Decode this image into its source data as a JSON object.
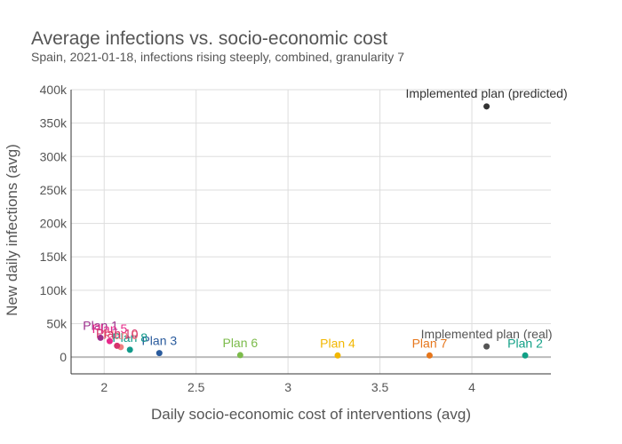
{
  "chart_data": {
    "type": "scatter",
    "title": "Average infections vs. socio-economic cost",
    "subtitle": "Spain, 2021-01-18, infections rising steeply, combined, granularity 7",
    "xlabel": "Daily socio-economic cost of interventions (avg)",
    "ylabel": "New daily infections (avg)",
    "xlim": [
      1.82,
      4.43
    ],
    "ylim": [
      -25000,
      400000
    ],
    "x_ticks": [
      2,
      2.5,
      3,
      3.5,
      4
    ],
    "x_tick_labels": [
      "2",
      "2.5",
      "3",
      "3.5",
      "4"
    ],
    "y_ticks": [
      0,
      50000,
      100000,
      150000,
      200000,
      250000,
      300000,
      350000,
      400000
    ],
    "y_tick_labels": [
      "0",
      "50k",
      "100k",
      "150k",
      "200k",
      "250k",
      "300k",
      "350k",
      "400k"
    ],
    "grid": true,
    "legend": "none",
    "points": [
      {
        "label": "Implemented plan (predicted)",
        "x": 4.08,
        "y": 375000,
        "color": "#333333"
      },
      {
        "label": "Implemented plan (real)",
        "x": 4.08,
        "y": 16000,
        "color": "#555555"
      },
      {
        "label": "Plan 1",
        "x": 1.98,
        "y": 29000,
        "color": "#9c2f8c"
      },
      {
        "label": "Plan 2",
        "x": 4.29,
        "y": 2500,
        "color": "#11a086"
      },
      {
        "label": "Plan 3",
        "x": 2.3,
        "y": 6000,
        "color": "#2a5b9d"
      },
      {
        "label": "Plan 4",
        "x": 3.27,
        "y": 2500,
        "color": "#f2b701"
      },
      {
        "label": "Plan 5",
        "x": 2.03,
        "y": 24000,
        "color": "#e7298a"
      },
      {
        "label": "Plan 6",
        "x": 2.74,
        "y": 3000,
        "color": "#7cbb4b"
      },
      {
        "label": "Plan 7",
        "x": 3.77,
        "y": 2500,
        "color": "#e6761b"
      },
      {
        "label": "Plan 8",
        "x": 2.14,
        "y": 11000,
        "color": "#119a8a"
      },
      {
        "label": "Plan 9",
        "x": 2.09,
        "y": 15000,
        "color": "#f08080"
      },
      {
        "label": "Plan 10",
        "x": 2.07,
        "y": 17000,
        "color": "#d6336c"
      }
    ]
  }
}
